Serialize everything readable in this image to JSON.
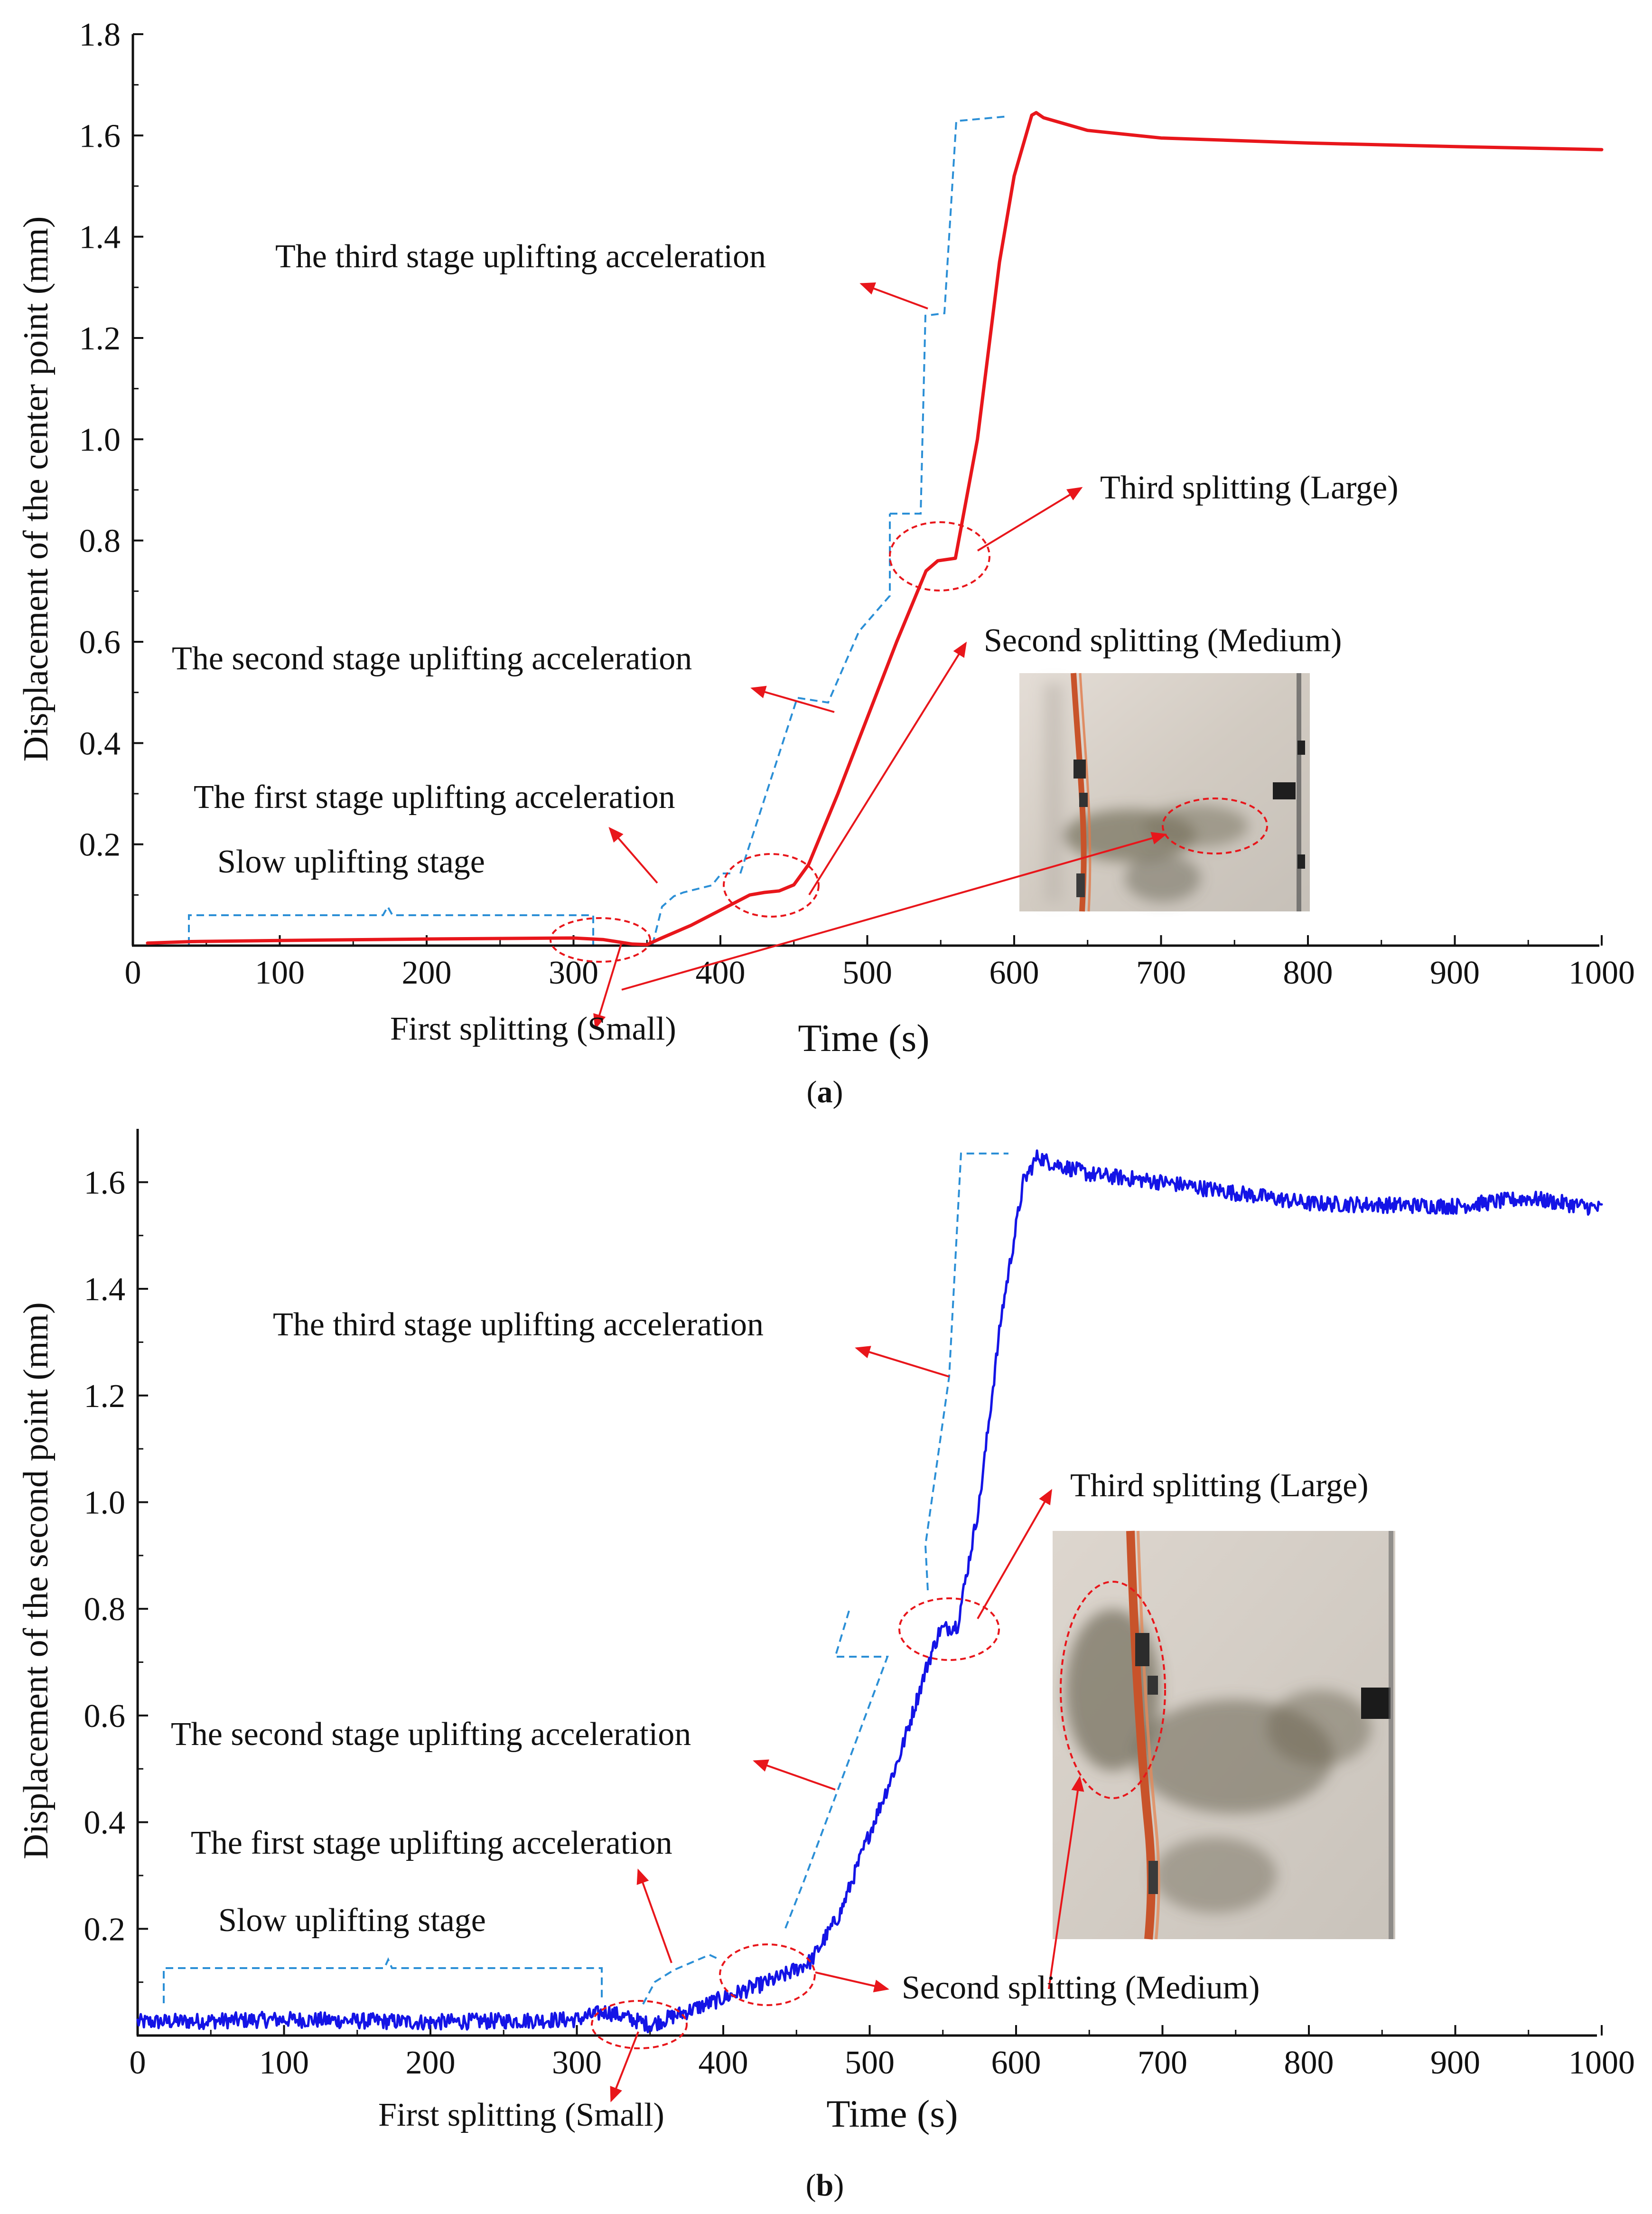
{
  "colors": {
    "series_a": "#e8161b",
    "series_b": "#1414e6",
    "stage_bracket": "#2b8fd6",
    "arrow": "#e8161b",
    "axis": "#111111"
  },
  "chart_data": [
    {
      "type": "line",
      "panel_label": "(a)",
      "panel_letter": "a",
      "xlabel": "Time (s)",
      "ylabel": "Displacement of the center point (mm)",
      "xlim": [
        0,
        1000
      ],
      "ylim": [
        0,
        1.8
      ],
      "xticks": [
        0,
        100,
        200,
        300,
        400,
        500,
        600,
        700,
        800,
        900,
        1000
      ],
      "yticks": [
        0.2,
        0.4,
        0.6,
        0.8,
        1.0,
        1.2,
        1.4,
        1.6,
        1.8
      ],
      "ytick_labels": [
        "0.2",
        "0.4",
        "0.6",
        "0.8",
        "1.0",
        "1.2",
        "1.4",
        "1.6",
        "1.8"
      ],
      "grid": false,
      "series": [
        {
          "color": "#e8161b",
          "noisy": false,
          "x": [
            10,
            40,
            100,
            200,
            300,
            320,
            340,
            350,
            360,
            380,
            400,
            420,
            430,
            440,
            450,
            460,
            480,
            500,
            520,
            540,
            548,
            560,
            575,
            590,
            600,
            612,
            615,
            620,
            650,
            700,
            800,
            900,
            1000
          ],
          "y": [
            0.005,
            0.008,
            0.01,
            0.013,
            0.015,
            0.012,
            0.003,
            0.002,
            0.015,
            0.04,
            0.07,
            0.1,
            0.105,
            0.108,
            0.12,
            0.16,
            0.3,
            0.45,
            0.6,
            0.74,
            0.76,
            0.765,
            1.0,
            1.35,
            1.52,
            1.64,
            1.645,
            1.635,
            1.61,
            1.595,
            1.585,
            1.578,
            1.572
          ]
        }
      ],
      "annotations": {
        "third_stage": "The third stage uplifting acceleration",
        "second_stage": "The second stage uplifting acceleration",
        "first_stage": "The first stage uplifting acceleration",
        "slow_stage": "Slow uplifting stage",
        "first_split": "First splitting (Small)",
        "second_split": "Second splitting (Medium)",
        "third_split": "Third splitting (Large)"
      }
    },
    {
      "type": "line",
      "panel_label": "(b)",
      "panel_letter": "b",
      "xlabel": "Time (s)",
      "ylabel": "Displacement of the second point  (mm)",
      "xlim": [
        0,
        1000
      ],
      "ylim": [
        0,
        1.7
      ],
      "xticks": [
        0,
        100,
        200,
        300,
        400,
        500,
        600,
        700,
        800,
        900,
        1000
      ],
      "yticks": [
        0.2,
        0.4,
        0.6,
        0.8,
        1.0,
        1.2,
        1.4,
        1.6
      ],
      "ytick_labels": [
        "0.2",
        "0.4",
        "0.6",
        "0.8",
        "1.0",
        "1.2",
        "1.4",
        "1.6"
      ],
      "grid": false,
      "series": [
        {
          "color": "#1414e6",
          "noisy": true,
          "x": [
            0,
            100,
            200,
            300,
            320,
            350,
            380,
            400,
            420,
            440,
            460,
            480,
            500,
            520,
            540,
            548,
            560,
            575,
            590,
            605,
            615,
            620,
            650,
            700,
            800,
            900,
            950,
            1000
          ],
          "y": [
            0.025,
            0.03,
            0.025,
            0.03,
            0.045,
            0.02,
            0.05,
            0.07,
            0.09,
            0.11,
            0.14,
            0.23,
            0.38,
            0.52,
            0.7,
            0.76,
            0.77,
            1.0,
            1.35,
            1.6,
            1.65,
            1.64,
            1.615,
            1.6,
            1.56,
            1.555,
            1.57,
            1.55
          ]
        }
      ],
      "annotations": {
        "third_stage": "The third stage uplifting acceleration",
        "second_stage": "The second stage uplifting acceleration",
        "first_stage": "The first stage uplifting acceleration",
        "slow_stage": "Slow uplifting stage",
        "first_split": "First splitting (Small)",
        "second_split": "Second splitting (Medium)",
        "third_split": "Third splitting (Large)"
      }
    }
  ]
}
